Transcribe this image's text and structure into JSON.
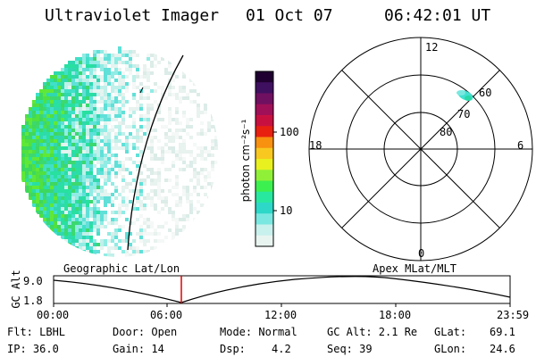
{
  "header": {
    "title": "Ultraviolet Imager",
    "date": "01 Oct 07",
    "time": "06:42:01 UT"
  },
  "colorbar": {
    "unit_label": "photon cm⁻²s⁻¹",
    "ticks": [
      "100",
      "10"
    ],
    "colors": [
      "#e8f4f0",
      "#c8f0ec",
      "#7ae8e0",
      "#2ed8c8",
      "#28e8a0",
      "#3cf050",
      "#90f038",
      "#e8f020",
      "#f8c820",
      "#f89010",
      "#e82010",
      "#c81040",
      "#a01058",
      "#701060",
      "#401060",
      "#200030"
    ]
  },
  "polar_plot": {
    "mlt_labels": {
      "top": "12",
      "left": "18",
      "right": "6",
      "bottom": "0"
    },
    "lat_labels": [
      "80",
      "70",
      "60"
    ]
  },
  "timeline": {
    "left_label": "Geographic Lat/Lon",
    "right_label": "Apex MLat/MLT",
    "axis_title": "GC Alt",
    "y_max": "9.0",
    "y_min": "1.8",
    "times": [
      "00:00",
      "06:00",
      "12:00",
      "18:00",
      "23:59"
    ],
    "marker_time": "06:42"
  },
  "info": {
    "flt": "Flt: LBHL",
    "ip": "IP: 36.0",
    "door": "Door: Open",
    "gain": "Gain: 14",
    "mode": "Mode: Normal",
    "dsp_label": "Dsp:",
    "dsp_value": "4.2",
    "gc_alt": "GC Alt: 2.1 Re",
    "seq": "Seq: 39",
    "glat_label": "GLat:",
    "glat_value": "69.1",
    "glon_label": "GLon:",
    "glon_value": "24.6"
  }
}
